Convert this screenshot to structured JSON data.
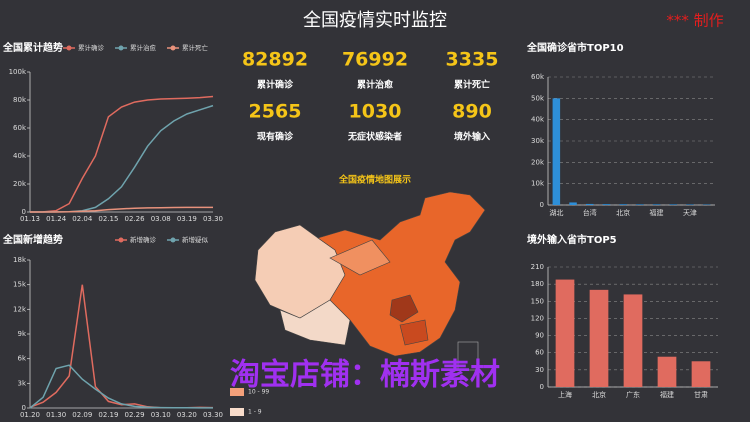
{
  "header": {
    "title": "全国疫情实时监控",
    "credit": "*** 制作"
  },
  "stats": [
    {
      "value": 82892,
      "label": "累计确诊"
    },
    {
      "value": 76992,
      "label": "累计治愈"
    },
    {
      "value": 3335,
      "label": "累计死亡"
    },
    {
      "value": 2565,
      "label": "现有确诊"
    },
    {
      "value": 1030,
      "label": "无症状感染者"
    },
    {
      "value": 890,
      "label": "境外输入"
    }
  ],
  "map": {
    "title": "全国疫情地图展示",
    "legend": [
      "10 - 99",
      "1 - 9"
    ]
  },
  "watermark": "淘宝店铺：楠斯素材",
  "chart_data": [
    {
      "type": "line",
      "title": "全国累计趋势",
      "categories": [
        "01.13",
        null,
        "01.24",
        null,
        "02.04",
        null,
        "02.15",
        null,
        "02.26",
        null,
        "03.08",
        null,
        "03.19",
        null,
        "03.30"
      ],
      "series": [
        {
          "name": "累计确诊",
          "color": "#e06b5f",
          "values": [
            0,
            100,
            900,
            6000,
            24000,
            40000,
            68000,
            75000,
            78500,
            80000,
            80700,
            81000,
            81300,
            81700,
            82500
          ]
        },
        {
          "name": "累计治愈",
          "color": "#6fa3ad",
          "values": [
            0,
            0,
            40,
            120,
            900,
            3300,
            9400,
            18000,
            32000,
            47000,
            58000,
            65000,
            70000,
            73000,
            76000
          ]
        },
        {
          "name": "累计死亡",
          "color": "#e8927c",
          "values": [
            0,
            0,
            30,
            170,
            500,
            900,
            1700,
            2200,
            2700,
            2900,
            3100,
            3200,
            3250,
            3280,
            3300
          ]
        }
      ],
      "ylim": [
        0,
        100000
      ],
      "yticks": [
        0,
        {
          "value": 20000,
          "label": "20k"
        },
        {
          "value": 40000,
          "label": "40k"
        },
        {
          "value": 60000,
          "label": "60k"
        },
        {
          "value": 80000,
          "label": "80k"
        },
        {
          "value": 100000,
          "label": "100k"
        }
      ],
      "grid": false
    },
    {
      "type": "line",
      "title": "全国新增趋势",
      "categories": [
        "01.20",
        null,
        "01.30",
        null,
        "02.09",
        null,
        "02.19",
        null,
        "02.29",
        null,
        "03.10",
        null,
        "03.20",
        null,
        "03.30"
      ],
      "series": [
        {
          "name": "新增确诊",
          "color": "#e06b5f",
          "values": [
            80,
            700,
            1900,
            3900,
            15000,
            2600,
            800,
            400,
            500,
            140,
            30,
            20,
            40,
            70,
            50
          ]
        },
        {
          "name": "新增疑似",
          "color": "#6fa3ad",
          "values": [
            0,
            1300,
            4800,
            5200,
            3500,
            2300,
            1200,
            500,
            200,
            100,
            50,
            30,
            20,
            10,
            10
          ]
        }
      ],
      "ylim": [
        0,
        18000
      ],
      "yticks": [
        0,
        {
          "value": 3000,
          "label": "3k"
        },
        {
          "value": 6000,
          "label": "6k"
        },
        {
          "value": 9000,
          "label": "9k"
        },
        {
          "value": 12000,
          "label": "12k"
        },
        {
          "value": 15000,
          "label": "15k"
        },
        {
          "value": 18000,
          "label": "18k"
        }
      ],
      "grid": false
    },
    {
      "type": "bar",
      "title": "全国确诊省市TOP10",
      "categories": [
        "湖北",
        null,
        "台湾",
        null,
        "北京",
        null,
        "福建",
        null,
        "天津",
        null
      ],
      "values": [
        50000,
        1200,
        500,
        400,
        350,
        300,
        300,
        280,
        250,
        200
      ],
      "color": "#2e8fd8",
      "ylim": [
        0,
        60000
      ],
      "yticks": [
        0,
        {
          "value": 10000,
          "label": "10k"
        },
        {
          "value": 20000,
          "label": "20k"
        },
        {
          "value": 30000,
          "label": "30k"
        },
        {
          "value": 40000,
          "label": "40k"
        },
        {
          "value": 50000,
          "label": "50k"
        },
        {
          "value": 60000,
          "label": "60k"
        }
      ],
      "grid": true
    },
    {
      "type": "bar",
      "title": "境外输入省市TOP5",
      "categories": [
        "上海",
        "北京",
        "广东",
        "福建",
        "甘肃"
      ],
      "values": [
        188,
        170,
        162,
        53,
        45
      ],
      "color": "#e06b5f",
      "ylim": [
        0,
        210
      ],
      "yticks": [
        0,
        30,
        60,
        90,
        120,
        150,
        180,
        210
      ],
      "grid": true
    }
  ]
}
